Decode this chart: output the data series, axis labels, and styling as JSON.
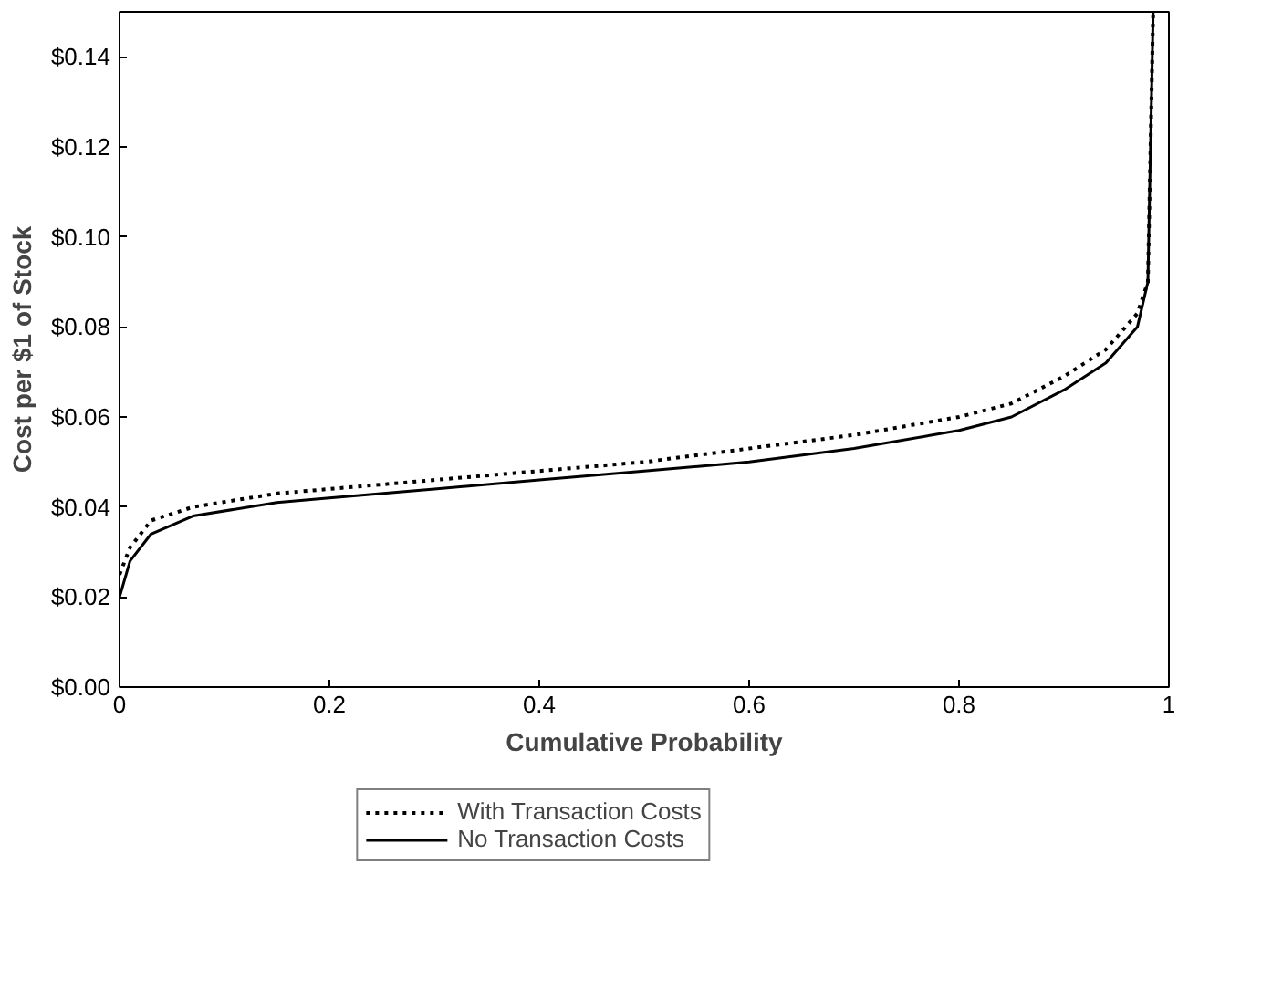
{
  "chart_data": {
    "type": "line",
    "xlabel": "Cumulative Probability",
    "ylabel": "Cost per $1 of Stock",
    "xlim": [
      0,
      1
    ],
    "ylim": [
      0,
      0.15
    ],
    "xticks": [
      0,
      0.2,
      0.4,
      0.6,
      0.8,
      1
    ],
    "yticks": [
      {
        "value": 0,
        "label": "$0.00"
      },
      {
        "value": 0.02,
        "label": "$0.02"
      },
      {
        "value": 0.04,
        "label": "$0.04"
      },
      {
        "value": 0.06,
        "label": "$0.06"
      },
      {
        "value": 0.08,
        "label": "$0.08"
      },
      {
        "value": 0.1,
        "label": "$0.10"
      },
      {
        "value": 0.12,
        "label": "$0.12"
      },
      {
        "value": 0.14,
        "label": "$0.14"
      }
    ],
    "grid": false,
    "legend": "bottom",
    "marker": "none",
    "series": [
      {
        "name": "With Transaction Costs",
        "color": "#000000",
        "line_style": "dotted",
        "x": [
          0,
          0.01,
          0.03,
          0.07,
          0.15,
          0.2,
          0.3,
          0.4,
          0.5,
          0.6,
          0.7,
          0.8,
          0.85,
          0.9,
          0.94,
          0.97,
          0.98,
          0.985
        ],
        "values": [
          0.025,
          0.031,
          0.037,
          0.04,
          0.043,
          0.044,
          0.046,
          0.048,
          0.05,
          0.053,
          0.056,
          0.06,
          0.063,
          0.069,
          0.075,
          0.083,
          0.09,
          0.15
        ]
      },
      {
        "name": "No Transaction Costs",
        "color": "#000000",
        "line_style": "solid",
        "x": [
          0,
          0.01,
          0.03,
          0.07,
          0.15,
          0.2,
          0.3,
          0.4,
          0.5,
          0.6,
          0.7,
          0.8,
          0.85,
          0.9,
          0.94,
          0.97,
          0.98,
          0.985
        ],
        "values": [
          0.02,
          0.028,
          0.034,
          0.038,
          0.041,
          0.042,
          0.044,
          0.046,
          0.048,
          0.05,
          0.053,
          0.057,
          0.06,
          0.066,
          0.072,
          0.08,
          0.09,
          0.15
        ]
      }
    ]
  }
}
